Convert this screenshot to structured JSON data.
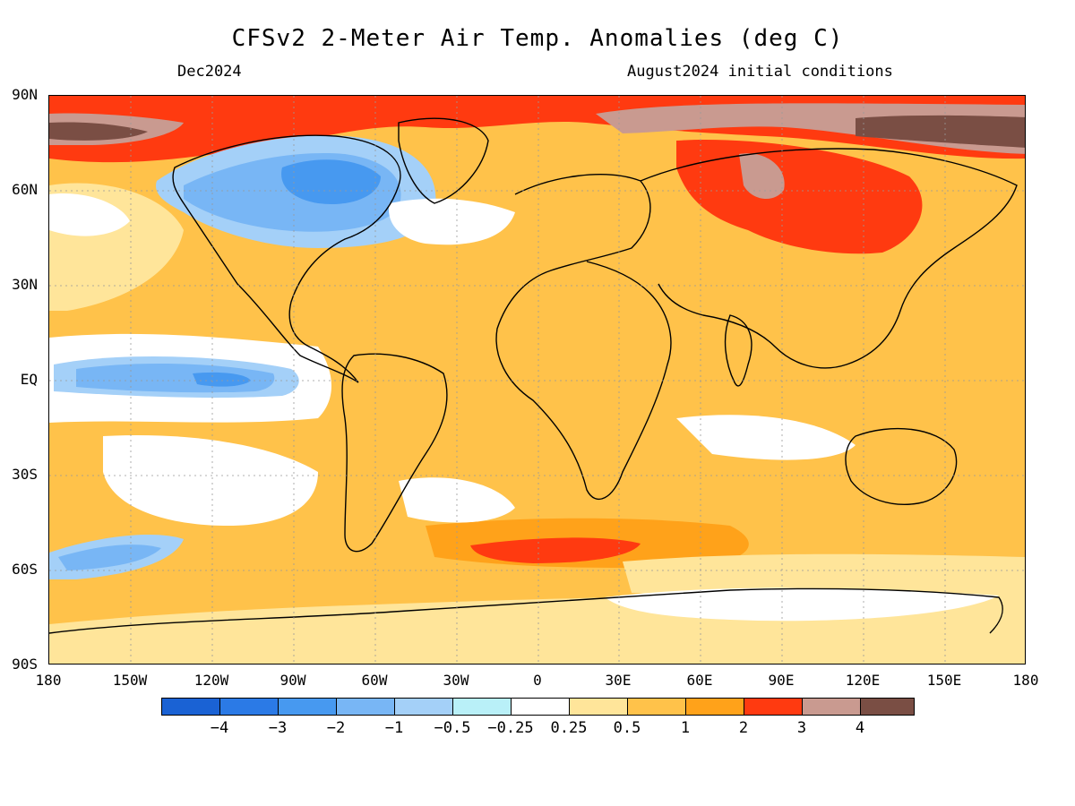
{
  "header": {
    "title": "CFSv2 2-Meter Air Temp. Anomalies (deg C)",
    "valid_month": "Dec2024",
    "initial_conditions": "August2024 initial conditions"
  },
  "axes": {
    "lat_labels": [
      "90N",
      "60N",
      "30N",
      "EQ",
      "30S",
      "60S",
      "90S"
    ],
    "lon_labels": [
      "180",
      "150W",
      "120W",
      "90W",
      "60W",
      "30W",
      "0",
      "30E",
      "60E",
      "90E",
      "120E",
      "150E",
      "180"
    ]
  },
  "colorbar": {
    "colors": [
      "#1a62d4",
      "#2b7ae6",
      "#4799f0",
      "#78b6f5",
      "#a4d0f8",
      "#b9f0f8",
      "#ffffff",
      "#ffe59a",
      "#ffc24a",
      "#ffa21a",
      "#ff3a10",
      "#c99a90",
      "#7a4e44"
    ],
    "labels": [
      "−4",
      "−3",
      "−2",
      "−1",
      "−0.5",
      "−0.25",
      "0.25",
      "0.5",
      "1",
      "2",
      "3",
      "4"
    ]
  },
  "colors": {
    "ocean_base": "#ffc24a",
    "land_outline": "#000000"
  }
}
